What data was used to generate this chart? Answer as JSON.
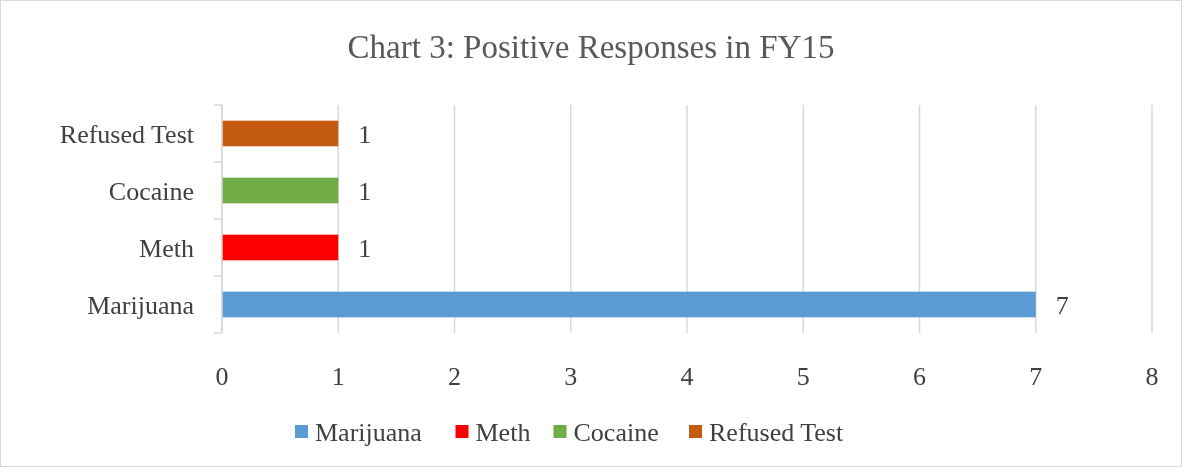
{
  "chart_data": {
    "type": "bar",
    "orientation": "horizontal",
    "stacked": true,
    "title": "Chart 3: Positive Responses in FY15",
    "categories": [
      "Refused Test",
      "Cocaine",
      "Meth",
      "Marijuana"
    ],
    "series": [
      {
        "name": "Marijuana",
        "color": "#5b9bd5",
        "values": [
          null,
          null,
          null,
          7
        ]
      },
      {
        "name": "Meth",
        "color": "#ff0000",
        "values": [
          null,
          null,
          1,
          null
        ]
      },
      {
        "name": "Cocaine",
        "color": "#70ad47",
        "values": [
          null,
          1,
          null,
          null
        ]
      },
      {
        "name": "Refused Test",
        "color": "#c55a11",
        "values": [
          1,
          null,
          null,
          null
        ]
      }
    ],
    "xlim": [
      0,
      8
    ],
    "xticks": [
      0,
      1,
      2,
      3,
      4,
      5,
      6,
      7,
      8
    ],
    "grid": "x",
    "legend": "bottom",
    "data_labels": true
  }
}
